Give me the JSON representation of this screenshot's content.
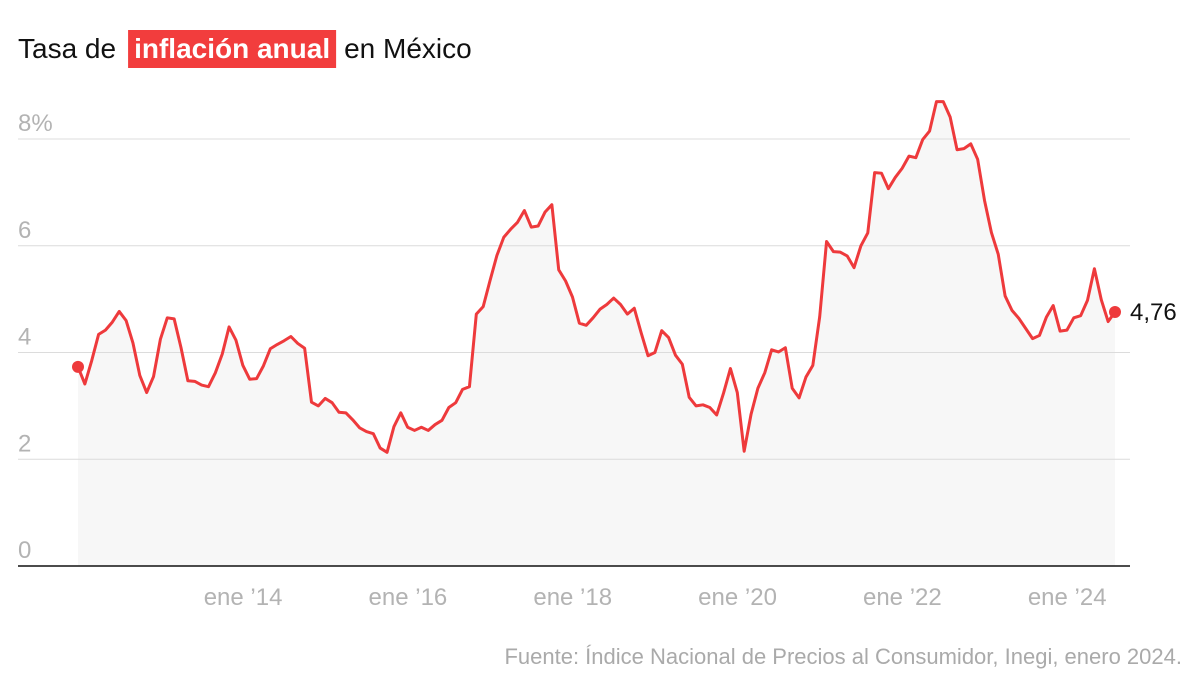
{
  "chart_data": {
    "type": "line",
    "title": "Tasa de",
    "title_highlight": "inflación anual",
    "title_end": "en México",
    "source": "Fuente: Índice Nacional de Precios al Consumidor, Inegi, enero 2024.",
    "color": "#ee3a3c",
    "area_color": "#f7f7f7",
    "highlight_color": "#f23d3d",
    "grid": true,
    "categories": [
      null,
      null,
      null,
      null,
      null,
      null,
      null,
      null,
      null,
      null,
      null,
      null,
      null,
      null,
      null,
      null,
      null,
      null,
      null,
      null,
      null,
      null,
      "ene ’14",
      null,
      null,
      null,
      null,
      null,
      null,
      null,
      null,
      null,
      null,
      null,
      null,
      null,
      null,
      null,
      null,
      null,
      null,
      null,
      null,
      null,
      null,
      null,
      "ene ’16",
      null,
      null,
      null,
      null,
      null,
      null,
      null,
      null,
      null,
      null,
      null,
      null,
      null,
      null,
      null,
      null,
      null,
      null,
      null,
      null,
      null,
      null,
      null,
      "ene ’18",
      null,
      null,
      null,
      null,
      null,
      null,
      null,
      null,
      null,
      null,
      null,
      null,
      null,
      null,
      null,
      null,
      null,
      null,
      null,
      null,
      null,
      null,
      null,
      "ene ’20",
      null,
      null,
      null,
      null,
      null,
      null,
      null,
      null,
      null,
      null,
      null,
      null,
      null,
      null,
      null,
      null,
      null,
      null,
      null,
      null,
      null,
      null,
      null,
      "ene ’22",
      null,
      null,
      null,
      null,
      null,
      null,
      null,
      null,
      null,
      null,
      null,
      null,
      null,
      null,
      null,
      null,
      null,
      null,
      null,
      null,
      null,
      null,
      null,
      "ene ’24",
      null,
      null,
      null,
      null,
      null,
      null,
      null,
      null,
      null
    ],
    "values": [
      3.73,
      3.41,
      3.85,
      4.34,
      4.42,
      4.57,
      4.77,
      4.6,
      4.18,
      3.57,
      3.25,
      3.55,
      4.25,
      4.65,
      4.63,
      4.09,
      3.47,
      3.46,
      3.39,
      3.36,
      3.62,
      3.97,
      4.48,
      4.23,
      3.76,
      3.5,
      3.51,
      3.75,
      4.07,
      4.15,
      4.22,
      4.3,
      4.17,
      4.08,
      3.07,
      3.0,
      3.14,
      3.06,
      2.88,
      2.87,
      2.74,
      2.59,
      2.52,
      2.48,
      2.21,
      2.13,
      2.61,
      2.87,
      2.6,
      2.54,
      2.6,
      2.54,
      2.65,
      2.73,
      2.97,
      3.06,
      3.31,
      3.36,
      4.72,
      4.86,
      5.35,
      5.82,
      6.16,
      6.31,
      6.44,
      6.66,
      6.35,
      6.37,
      6.63,
      6.77,
      5.55,
      5.34,
      5.04,
      4.55,
      4.51,
      4.65,
      4.81,
      4.9,
      5.02,
      4.9,
      4.72,
      4.83,
      4.37,
      3.94,
      4.0,
      4.41,
      4.28,
      3.95,
      3.78,
      3.16,
      3.0,
      3.02,
      2.97,
      2.83,
      3.24,
      3.7,
      3.25,
      2.15,
      2.84,
      3.33,
      3.62,
      4.05,
      4.01,
      4.09,
      3.33,
      3.15,
      3.54,
      3.76,
      4.67,
      6.08,
      5.89,
      5.88,
      5.81,
      5.59,
      6.0,
      6.24,
      7.37,
      7.36,
      7.07,
      7.28,
      7.45,
      7.68,
      7.65,
      7.99,
      8.15,
      8.7,
      8.7,
      8.41,
      7.8,
      7.82,
      7.91,
      7.62,
      6.85,
      6.25,
      5.84,
      5.06,
      4.79,
      4.64,
      4.45,
      4.26,
      4.32,
      4.66,
      4.88,
      4.4,
      4.42,
      4.65,
      4.69,
      4.98,
      5.57,
      4.99,
      4.58,
      4.76
    ],
    "value_labels": [
      null,
      null,
      null,
      null,
      null,
      null,
      null,
      null,
      null,
      null,
      null,
      null,
      null,
      null,
      null,
      null,
      null,
      null,
      null,
      null,
      null,
      null,
      null,
      null,
      null,
      null,
      null,
      null,
      null,
      null,
      null,
      null,
      null,
      null,
      null,
      null,
      null,
      null,
      null,
      null,
      null,
      null,
      null,
      null,
      null,
      null,
      null,
      null,
      null,
      null,
      null,
      null,
      null,
      null,
      null,
      null,
      null,
      null,
      null,
      null,
      null,
      null,
      null,
      null,
      null,
      null,
      null,
      null,
      null,
      null,
      null,
      null,
      null,
      null,
      null,
      null,
      null,
      null,
      null,
      null,
      null,
      null,
      null,
      null,
      null,
      null,
      null,
      null,
      null,
      null,
      null,
      null,
      null,
      null,
      null,
      null,
      null,
      null,
      null,
      null,
      null,
      null,
      null,
      null,
      null,
      null,
      null,
      null,
      null,
      null,
      null,
      null,
      null,
      null,
      null,
      null,
      null,
      null,
      null,
      null,
      null,
      null,
      null,
      null,
      null,
      null,
      null,
      null,
      null,
      null,
      null,
      null,
      null,
      null,
      null,
      null,
      null,
      null,
      null,
      null,
      null,
      null,
      null,
      null,
      null,
      null,
      null,
      null,
      null,
      null,
      null,
      "4,76"
    ],
    "ylim": [
      0,
      8.9
    ],
    "yticks": [
      0,
      2,
      4,
      6,
      {
        "value": 8,
        "label": "8%"
      }
    ]
  }
}
